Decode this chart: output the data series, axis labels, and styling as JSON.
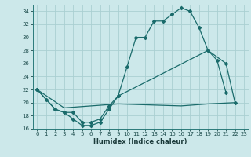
{
  "xlabel": "Humidex (Indice chaleur)",
  "bg_color": "#cce8ea",
  "grid_color": "#aacfd2",
  "line_color": "#1a6b6b",
  "xlim": [
    -0.5,
    23.5
  ],
  "ylim": [
    16,
    35
  ],
  "yticks": [
    16,
    18,
    20,
    22,
    24,
    26,
    28,
    30,
    32,
    34
  ],
  "xticks": [
    0,
    1,
    2,
    3,
    4,
    5,
    6,
    7,
    8,
    9,
    10,
    11,
    12,
    13,
    14,
    15,
    16,
    17,
    18,
    19,
    20,
    21,
    22,
    23
  ],
  "line1_x": [
    0,
    1,
    2,
    3,
    4,
    5,
    6,
    7,
    8,
    9,
    10,
    11,
    12,
    13,
    14,
    15,
    16,
    17,
    18,
    19,
    20,
    21
  ],
  "line1_y": [
    22,
    20.5,
    19,
    18.5,
    17.5,
    16.5,
    16.5,
    17,
    19,
    21,
    25.5,
    30,
    30,
    32.5,
    32.5,
    33.5,
    34.5,
    34,
    31.5,
    28,
    26.5,
    21.5
  ],
  "line2_x": [
    0,
    2,
    3,
    4,
    5,
    6,
    7,
    8,
    9,
    19,
    21,
    22
  ],
  "line2_y": [
    22,
    19,
    18.5,
    18.5,
    17.0,
    17.0,
    17.5,
    19.5,
    21,
    28,
    26,
    20
  ],
  "line3_x": [
    0,
    3,
    9,
    16,
    19,
    22
  ],
  "line3_y": [
    22,
    19.2,
    19.8,
    19.5,
    19.8,
    20.0
  ]
}
